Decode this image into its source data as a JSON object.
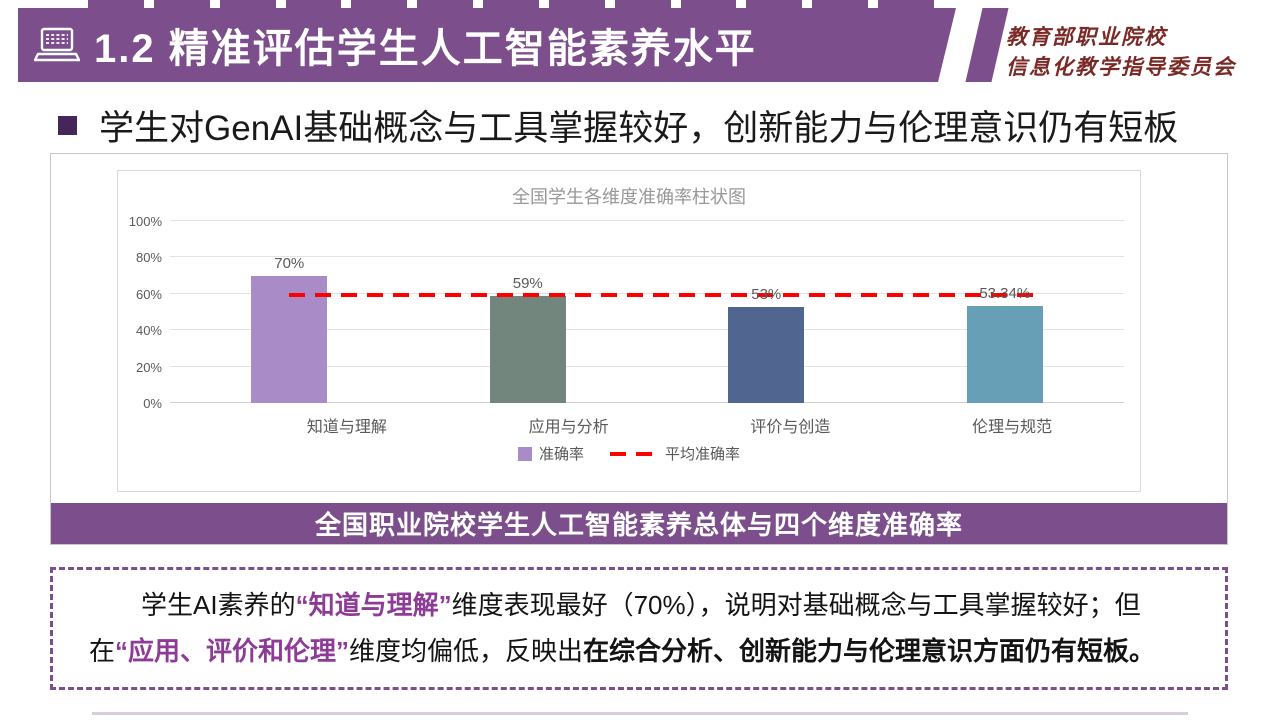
{
  "colors": {
    "accent_purple": "#7C4F8C",
    "dark_purple_bullet": "#46265A",
    "highlight_purple": "#8E3B97",
    "org_maroon": "#7A2A26",
    "average_line_red": "#FF0000"
  },
  "header": {
    "title": "1.2 精准评估学生人工智能素养水平",
    "org_line1": "教育部职业院校",
    "org_line2": "信息化教学指导委员会"
  },
  "headline": "学生对GenAI基础概念与工具掌握较好，创新能力与伦理意识仍有短板",
  "chart_data": {
    "type": "bar",
    "title": "全国学生各维度准确率柱状图",
    "categories": [
      "知道与理解",
      "应用与分析",
      "评价与创造",
      "伦理与规范"
    ],
    "values": [
      70,
      59,
      53,
      53.34
    ],
    "value_labels": [
      "70%",
      "59%",
      "53%",
      "53.34%"
    ],
    "bar_colors": [
      "#A98BC8",
      "#72867E",
      "#506590",
      "#67A0B6"
    ],
    "average_line": {
      "value": 59.3,
      "color": "#FF0000"
    },
    "ylim": [
      0,
      100
    ],
    "yticks": [
      0,
      20,
      40,
      60,
      80,
      100
    ],
    "ytick_labels": [
      "0%",
      "20%",
      "40%",
      "60%",
      "80%",
      "100%"
    ],
    "grid": true,
    "legend_position": "bottom",
    "legend": [
      {
        "label": "准确率",
        "swatch": "bar"
      },
      {
        "label": "平均准确率",
        "swatch": "dashed-line"
      }
    ]
  },
  "caption": "全国职业院校学生人工智能素养总体与四个维度准确率",
  "summary": {
    "seg1": "学生AI素养的",
    "seg2": "“知道与理解”",
    "seg3": "维度表现最好（70%），说明对基础概念与工具掌握较好；但在",
    "seg4": "“应用、评价和伦理”",
    "seg5": "维度均偏低，反映出",
    "seg6": "在综合分析、创新能力与伦理意识方面仍有短板。"
  }
}
